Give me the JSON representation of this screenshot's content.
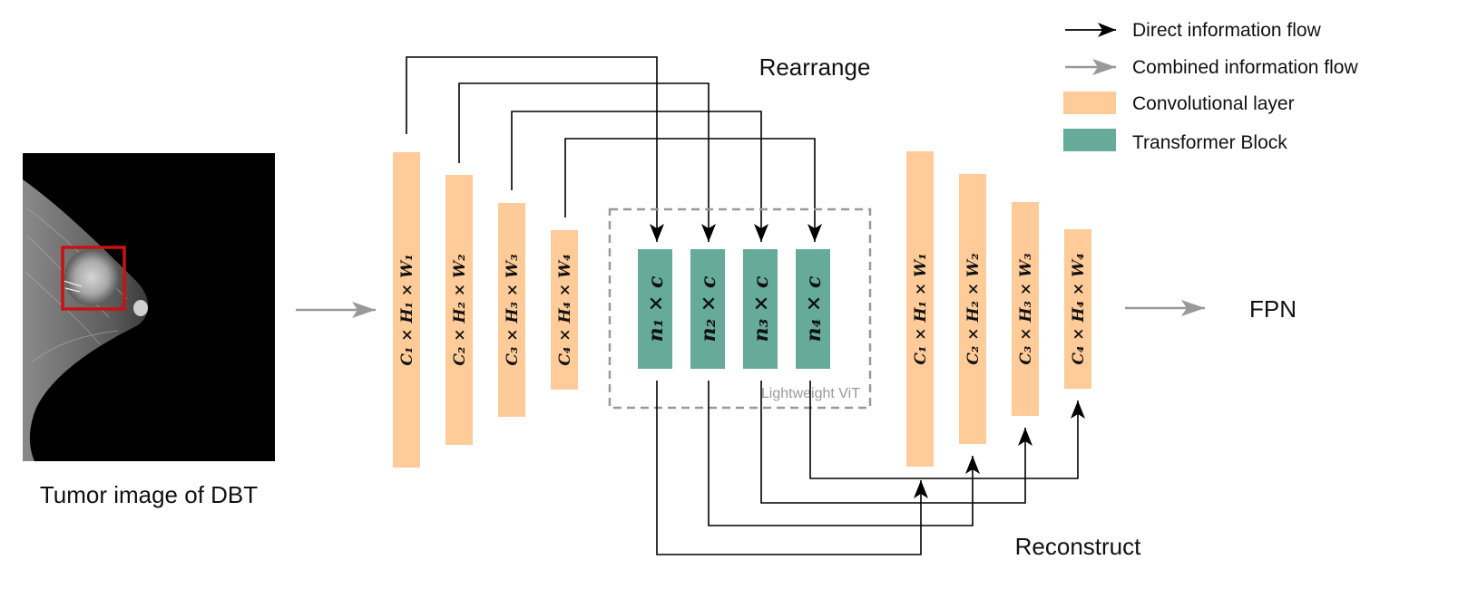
{
  "colors": {
    "conv": "#FFCC99",
    "transformer": "#66AA99",
    "direct_flow": "#000000",
    "combined_flow": "#999999",
    "dashed_box": "#999999",
    "roi_box": "#CC1111"
  },
  "image": {
    "caption": "Tumor image of DBT",
    "icon": "mammogram-image"
  },
  "labels": {
    "rearrange": "Rearrange",
    "reconstruct": "Reconstruct",
    "fpn": "FPN",
    "vit": "Lightweight ViT"
  },
  "legend": [
    {
      "label": "Direct information flow",
      "kind": "black-arrow"
    },
    {
      "label": "Combined information flow",
      "kind": "gray-arrow"
    },
    {
      "label": "Convolutional layer",
      "kind": "conv-swatch"
    },
    {
      "label": "Transformer Block",
      "kind": "transformer-swatch"
    }
  ],
  "input_features": [
    {
      "label": "C₁ × H₁ × W₁"
    },
    {
      "label": "C₂ × H₂ × W₂"
    },
    {
      "label": "C₃ × H₃ × W₃"
    },
    {
      "label": "C₄ × H₄ × W₄"
    }
  ],
  "transformer_blocks": [
    {
      "label": "n₁ × c"
    },
    {
      "label": "n₂ × c"
    },
    {
      "label": "n₃ × c"
    },
    {
      "label": "n₄ × c"
    }
  ],
  "output_features": [
    {
      "label": "C₁ × H₁ × W₁"
    },
    {
      "label": "C₂ × H₂ × W₂"
    },
    {
      "label": "C₃ × H₃ × W₃"
    },
    {
      "label": "C₄ × H₄ × W₄"
    }
  ]
}
